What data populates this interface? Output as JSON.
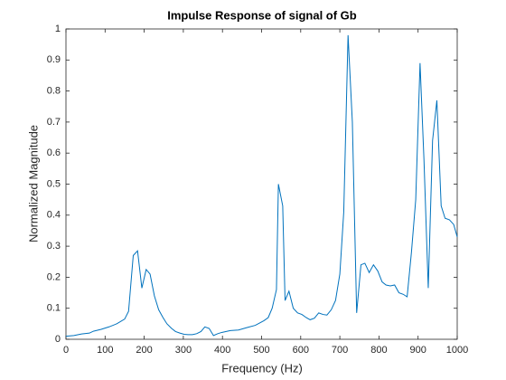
{
  "chart_data": {
    "type": "line",
    "title": "Impulse Response of signal of Gb",
    "xlabel": "Frequency (Hz)",
    "ylabel": "Normalized Magnitude",
    "x": [
      0,
      20,
      40,
      60,
      70,
      90,
      110,
      130,
      150,
      160,
      172,
      183,
      194,
      205,
      215,
      226,
      237,
      248,
      258,
      270,
      280,
      291,
      302,
      312,
      323,
      334,
      345,
      355,
      366,
      377,
      388,
      398,
      420,
      441,
      463,
      484,
      506,
      517,
      527,
      538,
      543,
      554,
      560,
      570,
      581,
      592,
      603,
      614,
      624,
      635,
      646,
      657,
      667,
      678,
      689,
      700,
      710,
      721,
      732,
      743,
      754,
      764,
      775,
      786,
      797,
      808,
      818,
      829,
      840,
      851,
      862,
      872,
      883,
      894,
      905,
      915,
      926,
      937,
      948,
      959,
      969,
      980,
      991,
      1000
    ],
    "series": [
      {
        "name": "Gb",
        "color": "#0072bd",
        "values": [
          0.01,
          0.012,
          0.017,
          0.02,
          0.026,
          0.032,
          0.04,
          0.05,
          0.065,
          0.09,
          0.27,
          0.285,
          0.165,
          0.225,
          0.21,
          0.14,
          0.095,
          0.07,
          0.05,
          0.035,
          0.025,
          0.02,
          0.016,
          0.015,
          0.015,
          0.018,
          0.025,
          0.04,
          0.035,
          0.012,
          0.018,
          0.022,
          0.028,
          0.03,
          0.038,
          0.045,
          0.06,
          0.07,
          0.1,
          0.16,
          0.5,
          0.43,
          0.125,
          0.155,
          0.1,
          0.085,
          0.08,
          0.07,
          0.063,
          0.068,
          0.085,
          0.08,
          0.078,
          0.095,
          0.125,
          0.21,
          0.41,
          0.98,
          0.7,
          0.085,
          0.24,
          0.245,
          0.215,
          0.24,
          0.22,
          0.185,
          0.175,
          0.172,
          0.175,
          0.15,
          0.145,
          0.137,
          0.28,
          0.45,
          0.89,
          0.58,
          0.165,
          0.64,
          0.77,
          0.43,
          0.39,
          0.385,
          0.37,
          0.33
        ]
      }
    ],
    "xlim": [
      0,
      1000
    ],
    "xticks": [
      0,
      100,
      200,
      300,
      400,
      500,
      600,
      700,
      800,
      900,
      1000
    ],
    "ylim": [
      0,
      1
    ],
    "yticks": [
      0,
      0.1,
      0.2,
      0.3,
      0.4,
      0.5,
      0.6,
      0.7,
      0.8,
      0.9,
      1
    ]
  }
}
